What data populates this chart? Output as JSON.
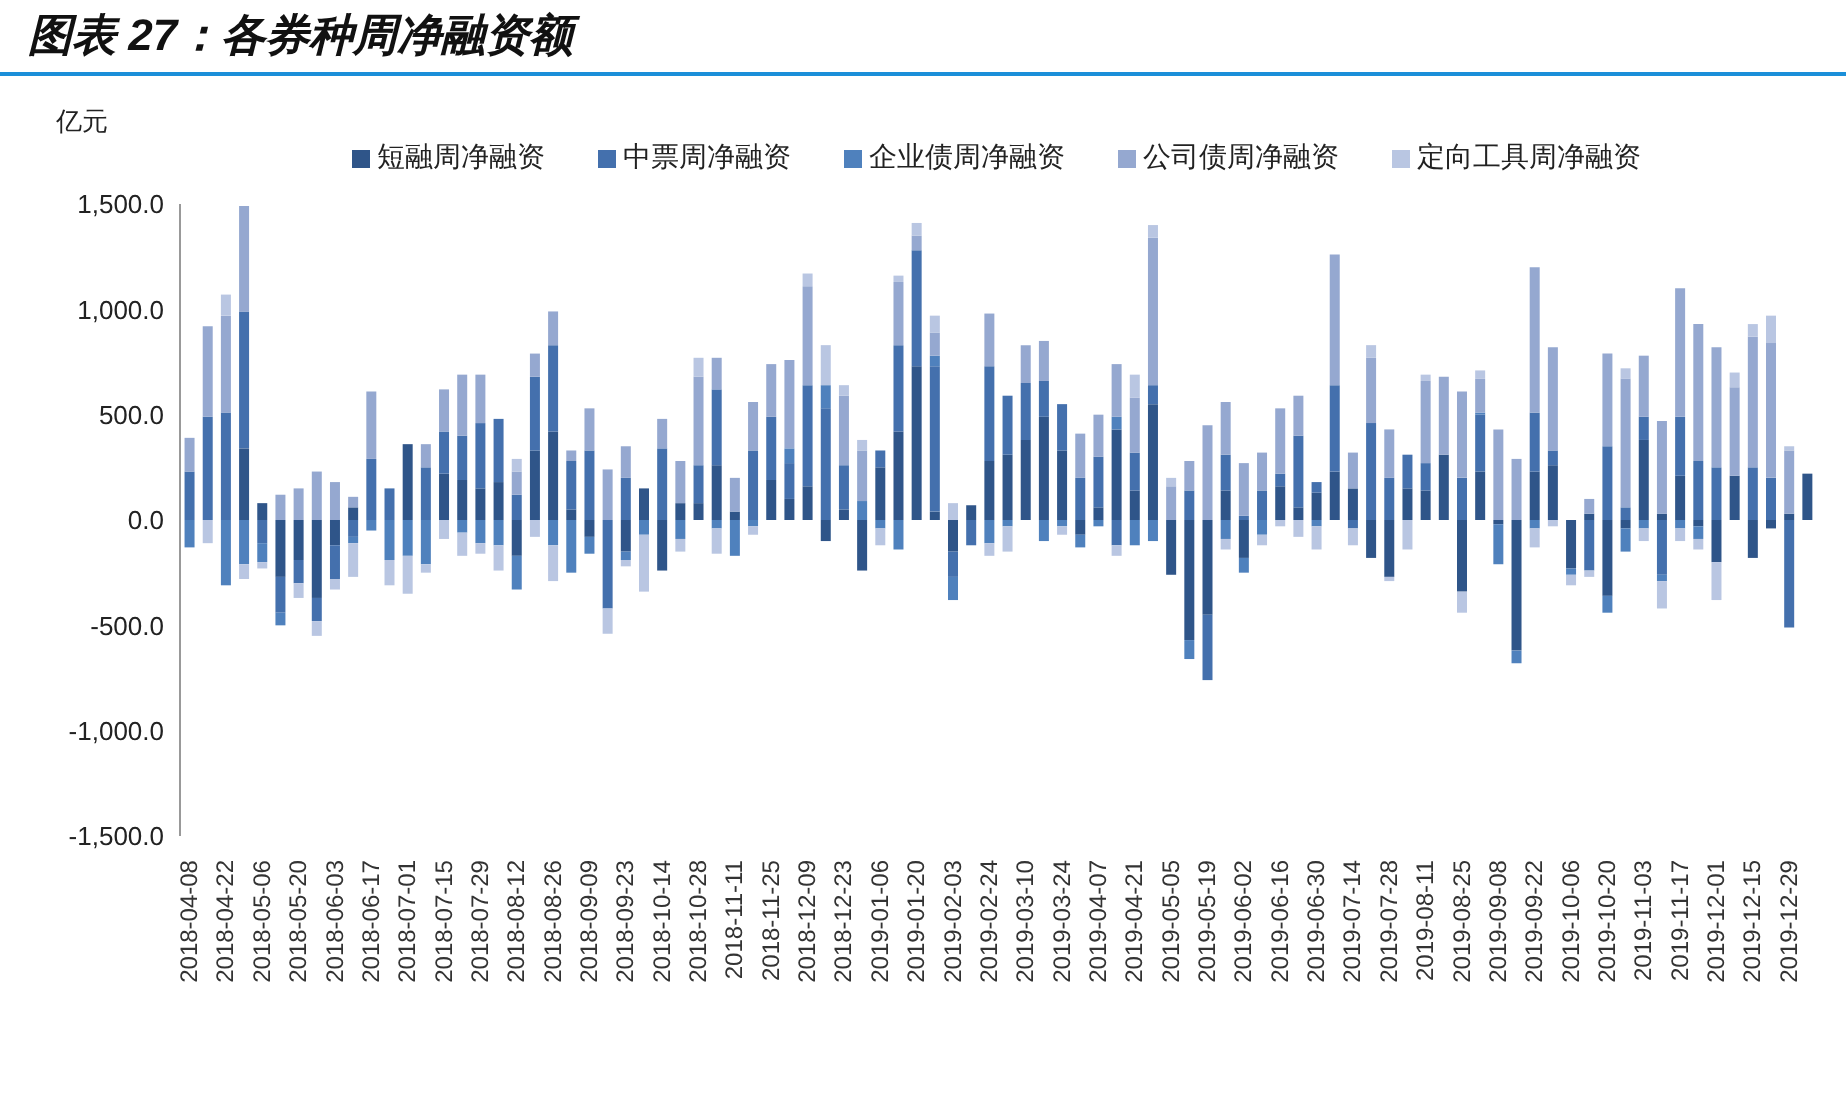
{
  "chart_data": {
    "type": "bar",
    "title": "图表 27：各券种周净融资额",
    "ylabel": "亿元",
    "stacked": true,
    "legend": "top",
    "categories": [
      "2018-04-08",
      null,
      "2018-04-22",
      null,
      "2018-05-06",
      null,
      "2018-05-20",
      null,
      "2018-06-03",
      null,
      "2018-06-17",
      null,
      "2018-07-01",
      null,
      "2018-07-15",
      null,
      "2018-07-29",
      null,
      "2018-08-12",
      null,
      "2018-08-26",
      null,
      "2018-09-09",
      null,
      "2018-09-23",
      null,
      "2018-10-14",
      null,
      "2018-10-28",
      null,
      "2018-11-11",
      null,
      "2018-11-25",
      null,
      "2018-12-09",
      null,
      "2018-12-23",
      null,
      "2019-01-06",
      null,
      "2019-01-20",
      null,
      "2019-02-03",
      null,
      "2019-02-24",
      null,
      "2019-03-10",
      null,
      "2019-03-24",
      null,
      "2019-04-07",
      null,
      "2019-04-21",
      null,
      "2019-05-05",
      null,
      "2019-05-19",
      null,
      "2019-06-02",
      null,
      "2019-06-16",
      null,
      "2019-06-30",
      null,
      "2019-07-14",
      null,
      "2019-07-28",
      null,
      "2019-08-11",
      null,
      "2019-08-25",
      null,
      "2019-09-08",
      null,
      "2019-09-22",
      null,
      "2019-10-06",
      null,
      "2019-10-20",
      null,
      "2019-11-03",
      null,
      "2019-11-17",
      null,
      "2019-12-01",
      null,
      "2019-12-15",
      null,
      "2019-12-29",
      null
    ],
    "ylim": [
      -1500,
      1500
    ],
    "yticks": [
      {
        "value": -1500,
        "label": "-1,500.0"
      },
      {
        "value": -1000,
        "label": "-1,000.0"
      },
      {
        "value": -500,
        "label": "-500.0"
      },
      {
        "value": 0,
        "label": "0.0"
      },
      {
        "value": 500,
        "label": "500.0"
      },
      {
        "value": 1000,
        "label": "1,000.0"
      },
      {
        "value": 1500,
        "label": "1,500.0"
      }
    ],
    "series": [
      {
        "name": "短融周净融资",
        "color": "#2f5589",
        "values": [
          0,
          0,
          0,
          340,
          80,
          -270,
          -190,
          -370,
          -120,
          60,
          0,
          0,
          360,
          0,
          220,
          190,
          150,
          180,
          -170,
          330,
          420,
          50,
          -80,
          0,
          -150,
          150,
          -240,
          80,
          80,
          260,
          40,
          0,
          190,
          100,
          160,
          -100,
          50,
          -240,
          250,
          420,
          730,
          40,
          -150,
          70,
          280,
          310,
          380,
          490,
          330,
          -70,
          60,
          430,
          140,
          550,
          -260,
          -570,
          -450,
          140,
          -180,
          0,
          160,
          60,
          130,
          230,
          150,
          -180,
          -270,
          150,
          140,
          310,
          -340,
          230,
          -20,
          -620,
          230,
          260,
          -230,
          30,
          -360,
          -40,
          380,
          30,
          210,
          -30,
          -200,
          210,
          -180,
          -40,
          30,
          220
        ]
      },
      {
        "name": "中票周净融资",
        "color": "#4470ad",
        "values": [
          230,
          490,
          510,
          650,
          -110,
          -170,
          -110,
          -110,
          -160,
          -80,
          290,
          150,
          0,
          250,
          200,
          210,
          310,
          300,
          120,
          350,
          410,
          230,
          330,
          -420,
          200,
          0,
          340,
          0,
          180,
          360,
          0,
          330,
          300,
          170,
          480,
          530,
          210,
          0,
          80,
          410,
          550,
          690,
          -120,
          -120,
          450,
          280,
          270,
          170,
          220,
          200,
          240,
          -120,
          180,
          90,
          0,
          140,
          -310,
          170,
          20,
          140,
          60,
          340,
          50,
          410,
          -40,
          460,
          200,
          160,
          130,
          0,
          200,
          270,
          0,
          0,
          280,
          70,
          0,
          -240,
          350,
          60,
          110,
          -260,
          280,
          280,
          250,
          0,
          250,
          200,
          -510,
          0
        ]
      },
      {
        "name": "企业债周净融资",
        "color": "#4f81bd",
        "values": [
          -130,
          0,
          -310,
          -210,
          -90,
          -60,
          0,
          0,
          0,
          -30,
          -50,
          -190,
          -170,
          -210,
          0,
          -60,
          -110,
          -120,
          -160,
          0,
          -120,
          -250,
          -80,
          0,
          -40,
          -70,
          0,
          -90,
          0,
          -40,
          -170,
          -30,
          0,
          70,
          0,
          110,
          0,
          90,
          -40,
          -140,
          0,
          50,
          -110,
          0,
          -110,
          -30,
          0,
          -100,
          -30,
          -60,
          -30,
          60,
          -120,
          -100,
          0,
          -90,
          0,
          -90,
          -70,
          -70,
          0,
          0,
          -30,
          0,
          0,
          0,
          0,
          0,
          0,
          0,
          0,
          10,
          -190,
          -60,
          -40,
          0,
          -30,
          0,
          -80,
          -110,
          -40,
          -30,
          -40,
          -60,
          0,
          0,
          0,
          0,
          0,
          0
        ]
      },
      {
        "name": "公司债周净融资",
        "color": "#95a8d0",
        "values": [
          160,
          430,
          460,
          500,
          0,
          120,
          150,
          230,
          180,
          50,
          320,
          0,
          0,
          110,
          200,
          290,
          230,
          0,
          110,
          110,
          160,
          50,
          200,
          240,
          150,
          0,
          140,
          200,
          420,
          150,
          160,
          230,
          250,
          420,
          470,
          0,
          330,
          240,
          0,
          300,
          70,
          110,
          0,
          0,
          250,
          0,
          180,
          190,
          0,
          210,
          200,
          250,
          260,
          700,
          160,
          140,
          450,
          250,
          250,
          180,
          310,
          190,
          0,
          620,
          170,
          310,
          230,
          0,
          390,
          370,
          410,
          160,
          430,
          290,
          690,
          490,
          0,
          70,
          440,
          610,
          290,
          440,
          610,
          650,
          570,
          420,
          620,
          640,
          300,
          0
        ]
      },
      {
        "name": "定向工具周净融资",
        "color": "#b9c6e2",
        "values": [
          0,
          -110,
          100,
          -70,
          -30,
          0,
          -70,
          -70,
          -50,
          -160,
          0,
          -120,
          -180,
          -40,
          -90,
          -110,
          -50,
          -120,
          60,
          -80,
          -170,
          0,
          0,
          -120,
          -30,
          -270,
          0,
          -60,
          90,
          -120,
          0,
          -40,
          0,
          0,
          60,
          190,
          50,
          50,
          -80,
          30,
          60,
          80,
          80,
          0,
          -60,
          -120,
          null,
          0,
          -40,
          0,
          0,
          -50,
          110,
          60,
          40,
          0,
          0,
          -50,
          0,
          -50,
          -30,
          -80,
          -110,
          0,
          -80,
          60,
          -20,
          -140,
          30,
          0,
          -100,
          40,
          0,
          0,
          -90,
          -30,
          -50,
          -30,
          0,
          50,
          -60,
          -130,
          -60,
          -50,
          -180,
          70,
          60,
          130,
          20,
          0
        ]
      }
    ]
  }
}
